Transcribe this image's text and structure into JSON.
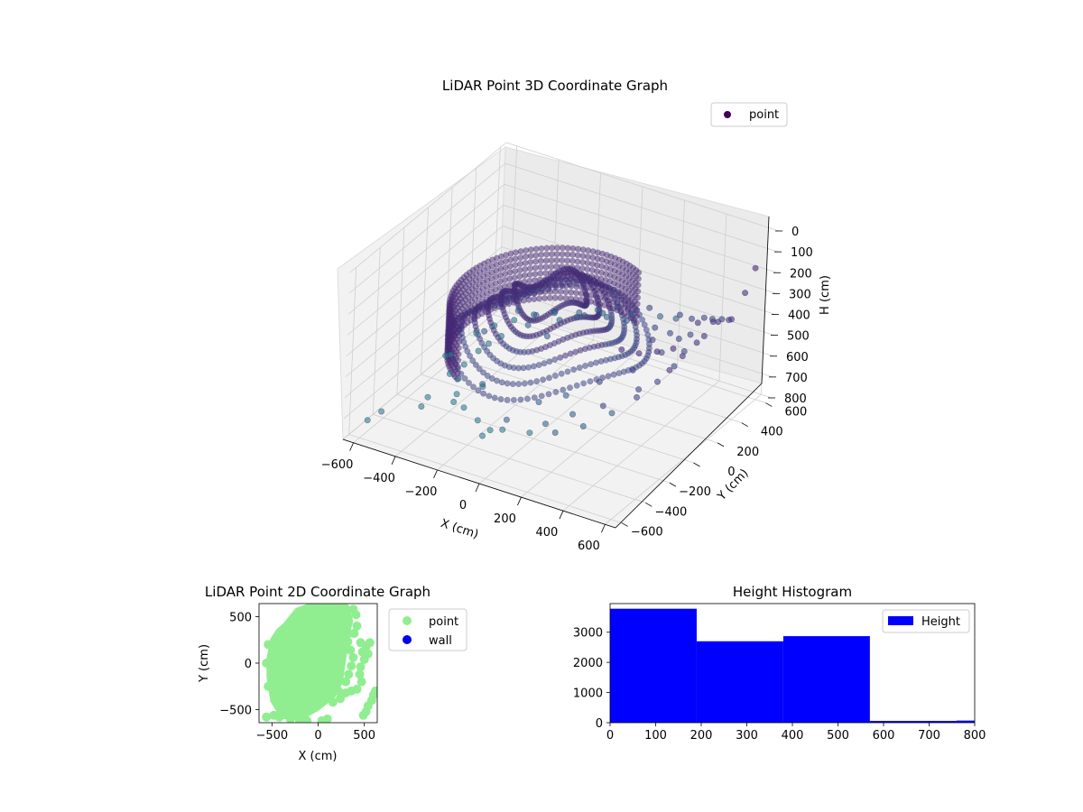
{
  "chart_data": [
    {
      "type": "scatter",
      "projection": "3d",
      "title": "LiDAR Point 3D Coordinate Graph",
      "xlabel": "X (cm)",
      "ylabel": "Y (cm)",
      "zlabel": "H (cm)",
      "xlim": [
        -650,
        650
      ],
      "ylim": [
        -650,
        650
      ],
      "zlim": [
        0,
        800
      ],
      "z_inverted": true,
      "xticks": [
        -600,
        -400,
        -200,
        0,
        200,
        400,
        600
      ],
      "yticks": [
        -600,
        -400,
        -200,
        0,
        200,
        400,
        600
      ],
      "zticks": [
        0,
        100,
        200,
        300,
        400,
        500,
        600,
        700,
        800
      ],
      "grid": true,
      "legend": {
        "placement": "top-right",
        "entries": [
          "point"
        ]
      },
      "colormap": "viridis",
      "series": [
        {
          "name": "point",
          "points": [
            [
              -580,
              120,
              740
            ],
            [
              -560,
              40,
              700
            ],
            [
              -500,
              -260,
              780
            ],
            [
              -520,
              10,
              760
            ],
            [
              -470,
              200,
              630
            ],
            [
              -380,
              320,
              560
            ],
            [
              -300,
              330,
              560
            ],
            [
              -250,
              400,
              560
            ],
            [
              -330,
              -50,
              730
            ],
            [
              -250,
              -200,
              620
            ],
            [
              -150,
              -300,
              760
            ],
            [
              -420,
              150,
              650
            ],
            [
              -120,
              -420,
              720
            ],
            [
              -200,
              250,
              590
            ],
            [
              -120,
              350,
              520
            ],
            [
              -60,
              420,
              500
            ],
            [
              20,
              440,
              470
            ],
            [
              150,
              480,
              450
            ],
            [
              300,
              470,
              430
            ],
            [
              420,
              460,
              400
            ],
            [
              520,
              430,
              360
            ],
            [
              580,
              380,
              320
            ],
            [
              620,
              330,
              280
            ],
            [
              600,
              250,
              260
            ],
            [
              560,
              150,
              230
            ],
            [
              620,
              100,
              250
            ],
            [
              630,
              20,
              240
            ],
            [
              620,
              -80,
              260
            ],
            [
              600,
              -150,
              300
            ],
            [
              540,
              -300,
              340
            ],
            [
              420,
              -380,
              420
            ],
            [
              300,
              -420,
              480
            ],
            [
              180,
              -430,
              560
            ],
            [
              -20,
              -400,
              620
            ],
            [
              -300,
              -350,
              650
            ],
            [
              -450,
              -300,
              700
            ],
            [
              350,
              150,
              380
            ],
            [
              450,
              50,
              360
            ],
            [
              400,
              -100,
              390
            ],
            [
              300,
              -200,
              430
            ],
            [
              200,
              -300,
              480
            ],
            [
              100,
              -350,
              520
            ],
            [
              500,
              200,
              330
            ],
            [
              550,
              300,
              300
            ],
            [
              640,
              400,
              180
            ],
            [
              640,
              480,
              100
            ],
            [
              640,
              -200,
              160
            ],
            [
              630,
              -320,
              120
            ],
            [
              600,
              -420,
              90
            ],
            [
              550,
              -480,
              60
            ],
            [
              -600,
              -420,
              760
            ],
            [
              -620,
              -500,
              770
            ],
            [
              -540,
              260,
              690
            ],
            [
              -500,
              340,
              680
            ],
            [
              -430,
              380,
              650
            ],
            [
              -360,
              420,
              620
            ],
            [
              -280,
              450,
              600
            ],
            [
              -180,
              480,
              580
            ],
            [
              -80,
              500,
              560
            ],
            [
              60,
              500,
              520
            ],
            [
              180,
              520,
              500
            ],
            [
              260,
              510,
              480
            ],
            [
              340,
              500,
              450
            ],
            [
              470,
              440,
              380
            ],
            [
              420,
              250,
              400
            ],
            [
              350,
              300,
              420
            ],
            [
              250,
              350,
              450
            ],
            [
              100,
              380,
              480
            ],
            [
              0,
              390,
              500
            ],
            [
              -100,
              380,
              520
            ],
            [
              -200,
              350,
              560
            ],
            [
              -320,
              300,
              600
            ],
            [
              -400,
              220,
              640
            ],
            [
              -450,
              120,
              680
            ],
            [
              -460,
              20,
              700
            ],
            [
              -430,
              -80,
              710
            ],
            [
              -380,
              -180,
              720
            ],
            [
              -300,
              -260,
              720
            ],
            [
              -200,
              -320,
              720
            ],
            [
              -60,
              -360,
              700
            ],
            [
              80,
              -380,
              660
            ],
            [
              200,
              -380,
              620
            ],
            [
              320,
              -360,
              560
            ],
            [
              430,
              -320,
              480
            ],
            [
              500,
              -240,
              420
            ],
            [
              540,
              -140,
              380
            ],
            [
              550,
              -20,
              360
            ],
            [
              540,
              80,
              340
            ]
          ]
        }
      ]
    },
    {
      "type": "scatter",
      "title": "LiDAR Point 2D Coordinate Graph",
      "xlabel": "X (cm)",
      "ylabel": "Y (cm)",
      "xlim": [
        -640,
        640
      ],
      "ylim": [
        -640,
        640
      ],
      "xticks": [
        -500,
        0,
        500
      ],
      "yticks": [
        -500,
        0,
        500
      ],
      "legend": {
        "placement": "outside-right",
        "entries": [
          "point",
          "wall"
        ]
      },
      "series": [
        {
          "name": "point",
          "color": "#90ee90",
          "region": [
            [
              -350,
              400
            ],
            [
              -220,
              560
            ],
            [
              -50,
              620
            ],
            [
              150,
              620
            ],
            [
              300,
              600
            ],
            [
              340,
              450
            ],
            [
              300,
              320
            ],
            [
              280,
              150
            ],
            [
              250,
              -50
            ],
            [
              230,
              -200
            ],
            [
              150,
              -350
            ],
            [
              -20,
              -480
            ],
            [
              -200,
              -580
            ],
            [
              -380,
              -560
            ],
            [
              -480,
              -400
            ],
            [
              -520,
              -150
            ],
            [
              -520,
              50
            ],
            [
              -480,
              250
            ],
            [
              -420,
              340
            ]
          ],
          "blobs": [
            [
              380,
              580
            ],
            [
              410,
              520
            ],
            [
              420,
              400
            ],
            [
              390,
              320
            ],
            [
              460,
              220
            ],
            [
              480,
              120
            ],
            [
              500,
              40
            ],
            [
              460,
              -40
            ],
            [
              450,
              -120
            ],
            [
              470,
              -200
            ],
            [
              420,
              -280
            ],
            [
              360,
              -300
            ],
            [
              300,
              -320
            ],
            [
              240,
              -380
            ],
            [
              160,
              -420
            ],
            [
              220,
              -300
            ],
            [
              180,
              -250
            ],
            [
              540,
              -460
            ],
            [
              580,
              -400
            ],
            [
              600,
              -340
            ],
            [
              620,
              -300
            ],
            [
              520,
              -520
            ],
            [
              490,
              -560
            ],
            [
              -480,
              -560
            ],
            [
              -560,
              -580
            ],
            [
              -420,
              -580
            ],
            [
              -300,
              -600
            ],
            [
              -200,
              -620
            ],
            [
              -120,
              -620
            ],
            [
              40,
              -620
            ],
            [
              100,
              -600
            ],
            [
              330,
              320
            ],
            [
              320,
              230
            ],
            [
              350,
              140
            ],
            [
              380,
              60
            ],
            [
              360,
              -30
            ],
            [
              330,
              -120
            ],
            [
              300,
              -200
            ],
            [
              560,
              220
            ],
            [
              520,
              180
            ],
            [
              540,
              100
            ],
            [
              -560,
              0
            ],
            [
              -540,
              200
            ],
            [
              -540,
              -250
            ]
          ]
        },
        {
          "name": "wall",
          "color": "#0000ee",
          "points": []
        }
      ]
    },
    {
      "type": "bar",
      "title": "Height Histogram",
      "xlim": [
        0,
        800
      ],
      "ylim": [
        0,
        3950
      ],
      "xticks": [
        0,
        100,
        200,
        300,
        400,
        500,
        600,
        700,
        800
      ],
      "yticks": [
        0,
        1000,
        2000,
        3000
      ],
      "legend": {
        "placement": "top-right",
        "entries": [
          "Height"
        ]
      },
      "series": [
        {
          "name": "Height",
          "color": "#0000ff",
          "bins": [
            0,
            190,
            380,
            570,
            760,
            950
          ],
          "values": [
            3780,
            2700,
            2870,
            60,
            70
          ]
        }
      ]
    }
  ]
}
